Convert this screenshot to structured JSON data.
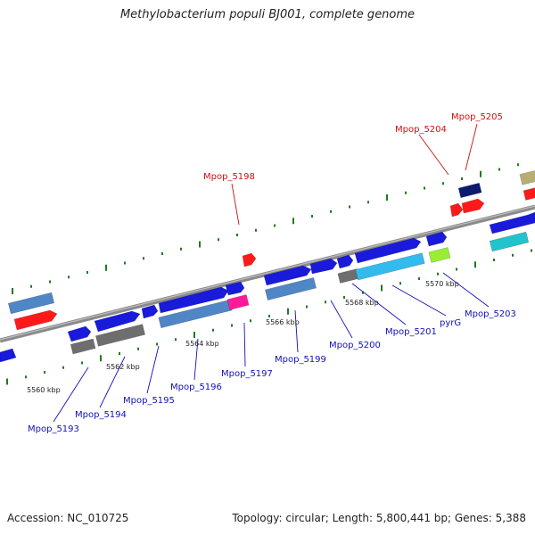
{
  "title": "Methylobacterium populi BJ001, complete genome",
  "footer": {
    "accession": "Accession: NC_010725",
    "stats": "Topology: circular; Length: 5,800,441 bp; Genes: 5,388"
  },
  "colors": {
    "backbone": "#8a8a8a",
    "tick": "#1f7a1f",
    "label_forward": "#cc1111",
    "label_reverse": "#1111bb"
  },
  "scale_labels": [
    "5560 kbp",
    "5562 kbp",
    "5564 kbp",
    "5566 kbp",
    "5568 kbp",
    "5570 kbp"
  ],
  "gene_labels": [
    {
      "text": "Mpop_5193",
      "strand": "reverse"
    },
    {
      "text": "Mpop_5194",
      "strand": "reverse"
    },
    {
      "text": "Mpop_5195",
      "strand": "reverse"
    },
    {
      "text": "Mpop_5196",
      "strand": "reverse"
    },
    {
      "text": "Mpop_5197",
      "strand": "reverse"
    },
    {
      "text": "Mpop_5198",
      "strand": "forward"
    },
    {
      "text": "Mpop_5199",
      "strand": "reverse"
    },
    {
      "text": "Mpop_5200",
      "strand": "reverse"
    },
    {
      "text": "Mpop_5201",
      "strand": "reverse"
    },
    {
      "text": "pyrG",
      "strand": "reverse"
    },
    {
      "text": "Mpop_5203",
      "strand": "reverse"
    },
    {
      "text": "Mpop_5204",
      "strand": "forward"
    },
    {
      "text": "Mpop_5205",
      "strand": "forward"
    }
  ]
}
